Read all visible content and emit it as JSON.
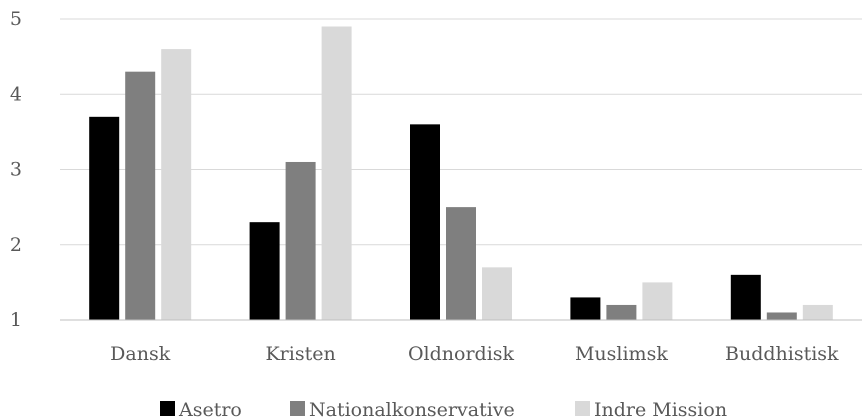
{
  "chart_data": {
    "type": "bar",
    "title": "",
    "xlabel": "",
    "ylabel": "",
    "categories": [
      "Dansk",
      "Kristen",
      "Oldnordisk",
      "Muslimsk",
      "Buddhistisk"
    ],
    "series": [
      {
        "name": "Asetro",
        "color": "#000000",
        "values": [
          3.7,
          2.3,
          3.6,
          1.3,
          1.6
        ]
      },
      {
        "name": "Nationalkonservative",
        "color": "#7f7f7f",
        "values": [
          4.3,
          3.1,
          2.5,
          1.2,
          1.1
        ]
      },
      {
        "name": "Indre Mission",
        "color": "#d9d9d9",
        "values": [
          4.6,
          4.9,
          1.7,
          1.5,
          1.2
        ]
      }
    ],
    "ylim": [
      1,
      5
    ],
    "yticks": [
      "1",
      "2",
      "3",
      "4",
      "5"
    ],
    "grid": true,
    "legend_position": "bottom"
  }
}
